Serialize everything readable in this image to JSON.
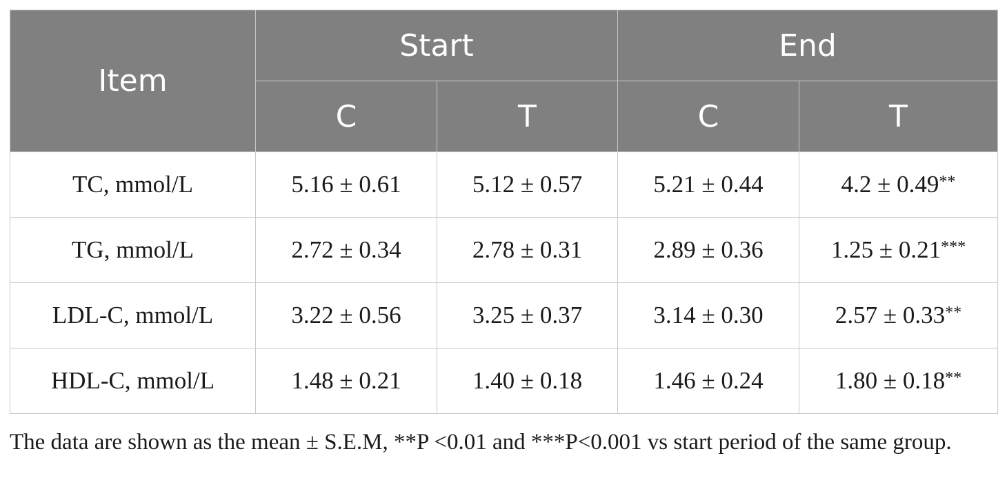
{
  "table": {
    "header": {
      "item": "Item",
      "start": "Start",
      "end": "End",
      "sub": [
        "C",
        "T",
        "C",
        "T"
      ]
    },
    "rows": [
      {
        "label": "TC, mmol/L",
        "values": [
          "5.16 ± 0.61",
          "5.12 ± 0.57",
          "5.21 ± 0.44",
          "4.2 ± 0.49"
        ],
        "sig": "**"
      },
      {
        "label": "TG, mmol/L",
        "values": [
          "2.72 ± 0.34",
          "2.78 ± 0.31",
          "2.89 ± 0.36",
          "1.25 ± 0.21"
        ],
        "sig": "***"
      },
      {
        "label": "LDL-C, mmol/L",
        "values": [
          "3.22 ± 0.56",
          "3.25 ± 0.37",
          "3.14 ± 0.30",
          "2.57 ± 0.33"
        ],
        "sig": "**"
      },
      {
        "label": "HDL-C, mmol/L",
        "values": [
          "1.48 ± 0.21",
          "1.40 ± 0.18",
          "1.46 ± 0.24",
          "1.80 ± 0.18"
        ],
        "sig": "**"
      }
    ]
  },
  "footnote": "The data are shown as the mean ± S.E.M, **P <0.01 and ***P<0.001 vs start period of the same group."
}
